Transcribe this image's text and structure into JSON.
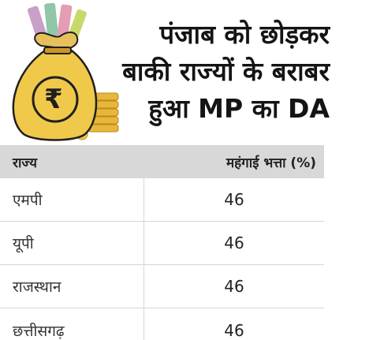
{
  "headline": {
    "lines": [
      "पंजाब को छोड़कर",
      "बाकी राज्यों के बराबर",
      "हुआ MP का DA"
    ]
  },
  "illustration": {
    "icon": "money-bag-rupee-icon",
    "symbol": "₹",
    "colors": {
      "bag": "#f0c94a",
      "outline": "#1f1f1f",
      "coins": "#e8b73a"
    }
  },
  "table": {
    "headers": {
      "state": "राज्य",
      "da": "महंगाई भत्ता (%)"
    },
    "rows": [
      {
        "state": "एमपी",
        "da": "46"
      },
      {
        "state": "यूपी",
        "da": "46"
      },
      {
        "state": "राजस्थान",
        "da": "46"
      },
      {
        "state": "छत्तीसगढ़",
        "da": "46"
      }
    ],
    "colors": {
      "header_bg": "#d8d8d8",
      "border": "#d6d6d6"
    }
  }
}
